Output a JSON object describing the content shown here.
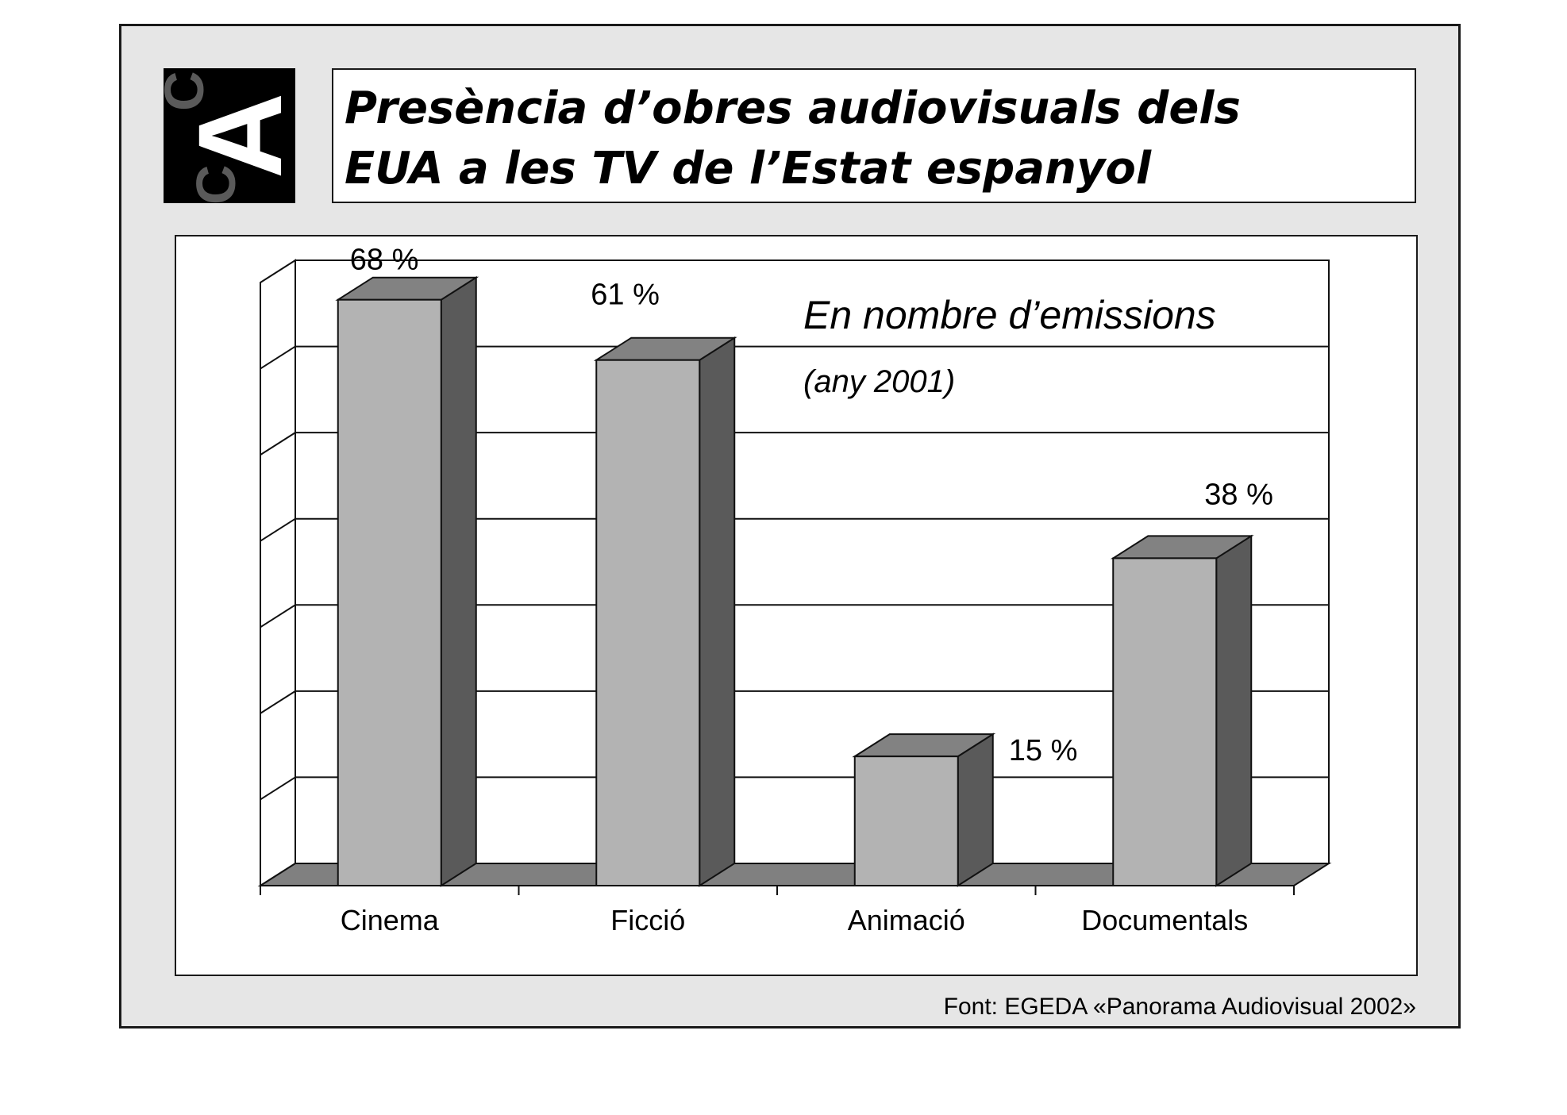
{
  "header": {
    "title_line1": "Presència d’obres audiovisuals dels",
    "title_line2": "EUA a les TV de l’Estat espanyol"
  },
  "logo": {
    "icon": "cac-logo-icon",
    "text": "CAC"
  },
  "colors": {
    "frame_bg": "#e6e6e6",
    "bar_front": "#b3b3b3",
    "bar_side": "#5a5a5a",
    "bar_top": "#828282",
    "floor": "#808080"
  },
  "chart_data": {
    "type": "bar",
    "title": "En nombre d’emissions",
    "subtitle": "(any 2001)",
    "categories": [
      "Cinema",
      "Ficció",
      "Animació",
      "Documentals"
    ],
    "values": [
      68,
      61,
      15,
      38
    ],
    "value_labels": [
      "68 %",
      "61 %",
      "15 %",
      "38 %"
    ],
    "ylim": [
      0,
      70
    ],
    "grid": true,
    "xlabel": "",
    "ylabel": "",
    "style": "3d-column"
  },
  "footer": {
    "source": "Font: EGEDA «Panorama Audiovisual 2002»"
  }
}
